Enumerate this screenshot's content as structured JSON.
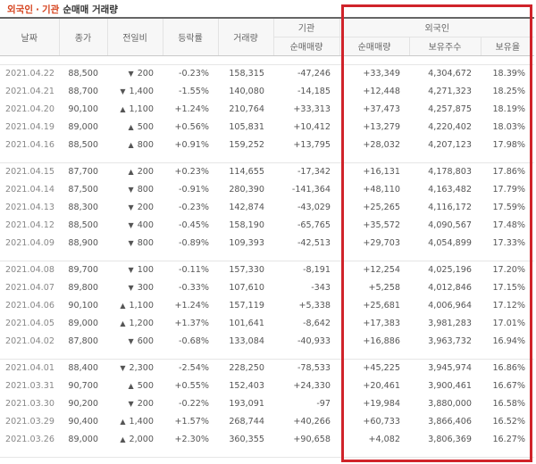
{
  "title": {
    "foreign": "외국인",
    "separator": "·",
    "institution": "기관",
    "rest": "순매매 거래량"
  },
  "headers": {
    "date": "날짜",
    "close": "종가",
    "change": "전일비",
    "rate": "등락률",
    "volume": "거래량",
    "inst_group": "기관",
    "inst_net": "순매매량",
    "foreign_group": "외국인",
    "foreign_net": "순매매량",
    "foreign_shares": "보유주수",
    "foreign_ratio": "보유율"
  },
  "groups": [
    [
      {
        "date": "2021.04.22",
        "close": "88,500",
        "dir": "down",
        "change": "200",
        "rate": "-0.23%",
        "volume": "158,315",
        "inst": "-47,246",
        "foreign": "+33,349",
        "shares": "4,304,672",
        "ratio": "18.39%"
      },
      {
        "date": "2021.04.21",
        "close": "88,700",
        "dir": "down",
        "change": "1,400",
        "rate": "-1.55%",
        "volume": "140,080",
        "inst": "-14,185",
        "foreign": "+12,448",
        "shares": "4,271,323",
        "ratio": "18.25%"
      },
      {
        "date": "2021.04.20",
        "close": "90,100",
        "dir": "up",
        "change": "1,100",
        "rate": "+1.24%",
        "volume": "210,764",
        "inst": "+33,313",
        "foreign": "+37,473",
        "shares": "4,257,875",
        "ratio": "18.19%"
      },
      {
        "date": "2021.04.19",
        "close": "89,000",
        "dir": "up",
        "change": "500",
        "rate": "+0.56%",
        "volume": "105,831",
        "inst": "+10,412",
        "foreign": "+13,279",
        "shares": "4,220,402",
        "ratio": "18.03%"
      },
      {
        "date": "2021.04.16",
        "close": "88,500",
        "dir": "up",
        "change": "800",
        "rate": "+0.91%",
        "volume": "159,252",
        "inst": "+13,795",
        "foreign": "+28,032",
        "shares": "4,207,123",
        "ratio": "17.98%"
      }
    ],
    [
      {
        "date": "2021.04.15",
        "close": "87,700",
        "dir": "up",
        "change": "200",
        "rate": "+0.23%",
        "volume": "114,655",
        "inst": "-17,342",
        "foreign": "+16,131",
        "shares": "4,178,803",
        "ratio": "17.86%"
      },
      {
        "date": "2021.04.14",
        "close": "87,500",
        "dir": "down",
        "change": "800",
        "rate": "-0.91%",
        "volume": "280,390",
        "inst": "-141,364",
        "foreign": "+48,110",
        "shares": "4,163,482",
        "ratio": "17.79%"
      },
      {
        "date": "2021.04.13",
        "close": "88,300",
        "dir": "down",
        "change": "200",
        "rate": "-0.23%",
        "volume": "142,874",
        "inst": "-43,029",
        "foreign": "+25,265",
        "shares": "4,116,172",
        "ratio": "17.59%"
      },
      {
        "date": "2021.04.12",
        "close": "88,500",
        "dir": "down",
        "change": "400",
        "rate": "-0.45%",
        "volume": "158,190",
        "inst": "-65,765",
        "foreign": "+35,572",
        "shares": "4,090,567",
        "ratio": "17.48%"
      },
      {
        "date": "2021.04.09",
        "close": "88,900",
        "dir": "down",
        "change": "800",
        "rate": "-0.89%",
        "volume": "109,393",
        "inst": "-42,513",
        "foreign": "+29,703",
        "shares": "4,054,899",
        "ratio": "17.33%"
      }
    ],
    [
      {
        "date": "2021.04.08",
        "close": "89,700",
        "dir": "down",
        "change": "100",
        "rate": "-0.11%",
        "volume": "157,330",
        "inst": "-8,191",
        "foreign": "+12,254",
        "shares": "4,025,196",
        "ratio": "17.20%"
      },
      {
        "date": "2021.04.07",
        "close": "89,800",
        "dir": "down",
        "change": "300",
        "rate": "-0.33%",
        "volume": "107,610",
        "inst": "-343",
        "foreign": "+5,258",
        "shares": "4,012,846",
        "ratio": "17.15%"
      },
      {
        "date": "2021.04.06",
        "close": "90,100",
        "dir": "up",
        "change": "1,100",
        "rate": "+1.24%",
        "volume": "157,119",
        "inst": "+5,338",
        "foreign": "+25,681",
        "shares": "4,006,964",
        "ratio": "17.12%"
      },
      {
        "date": "2021.04.05",
        "close": "89,000",
        "dir": "up",
        "change": "1,200",
        "rate": "+1.37%",
        "volume": "101,641",
        "inst": "-8,642",
        "foreign": "+17,383",
        "shares": "3,981,283",
        "ratio": "17.01%"
      },
      {
        "date": "2021.04.02",
        "close": "87,800",
        "dir": "down",
        "change": "600",
        "rate": "-0.68%",
        "volume": "133,084",
        "inst": "-40,933",
        "foreign": "+16,886",
        "shares": "3,963,732",
        "ratio": "16.94%"
      }
    ],
    [
      {
        "date": "2021.04.01",
        "close": "88,400",
        "dir": "down",
        "change": "2,300",
        "rate": "-2.54%",
        "volume": "228,250",
        "inst": "-78,533",
        "foreign": "+45,225",
        "shares": "3,945,974",
        "ratio": "16.86%"
      },
      {
        "date": "2021.03.31",
        "close": "90,700",
        "dir": "up",
        "change": "500",
        "rate": "+0.55%",
        "volume": "152,403",
        "inst": "+24,330",
        "foreign": "+20,461",
        "shares": "3,900,461",
        "ratio": "16.67%"
      },
      {
        "date": "2021.03.30",
        "close": "90,200",
        "dir": "down",
        "change": "200",
        "rate": "-0.22%",
        "volume": "193,091",
        "inst": "-97",
        "foreign": "+19,984",
        "shares": "3,880,000",
        "ratio": "16.58%"
      },
      {
        "date": "2021.03.29",
        "close": "90,400",
        "dir": "up",
        "change": "1,400",
        "rate": "+1.57%",
        "volume": "268,744",
        "inst": "+40,266",
        "foreign": "+60,733",
        "shares": "3,866,406",
        "ratio": "16.52%"
      },
      {
        "date": "2021.03.26",
        "close": "89,000",
        "dir": "up",
        "change": "2,000",
        "rate": "+2.30%",
        "volume": "360,355",
        "inst": "+90,658",
        "foreign": "+4,082",
        "shares": "3,806,369",
        "ratio": "16.27%"
      }
    ]
  ],
  "icons": {
    "up": "triangle-up-icon",
    "down": "triangle-down-icon"
  },
  "colors": {
    "up": "#d6231e",
    "down": "#1a63c9",
    "title_accent": "#d6431e",
    "highlight_box": "#d0232a"
  }
}
